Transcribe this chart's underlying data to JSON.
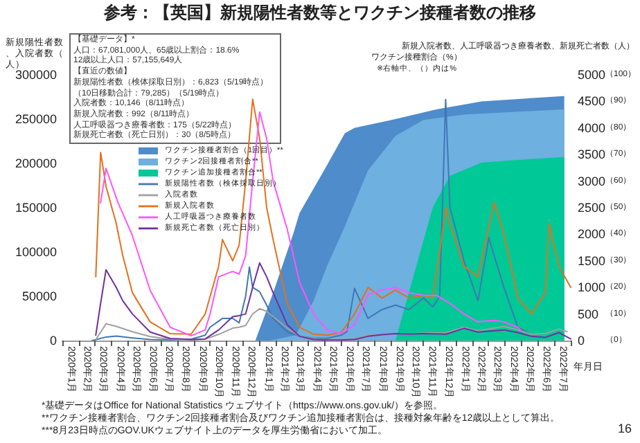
{
  "chart_data": {
    "type": "line",
    "title": "参考：【英国】新規陽性者数等とワクチン接種者数の推移",
    "xlabel": "年月日",
    "ylabel": "新規陽性者数、入院者数（人）",
    "y2label": "新規入院者数、人工呼吸器つき療養者数、新規死亡者数（人）",
    "y3label": "ワクチン接種割合（%）",
    "annotations": [
      "【基礎データ】*",
      "人口：67,081,000人、65歳以上割合：18.6%",
      "12歳以上人口：57,155,649人",
      "【直近の数値】",
      "新規陽性者数（検体採取日別）：6,823（5/19時点）",
      "（10日移動合計：79,285）（5/19時点）",
      "入院者数：10,146（8/11時点）",
      "新規入院者数：992（8/11時点）",
      "人工呼吸器つき療養者数：175（5/22時点）",
      "新規死亡者数（死亡日別）：30（8/5時点）",
      "※右軸中、（）内は%",
      "*基礎データはOffice for National Statistics ウェブサイト（https://www.ons.gov.uk/）を参照。",
      "**ワクチン接種者割合、ワクチン2回接種者割合及びワクチン追加接種者割合は、接種対象年齢を12歳以上として算出。",
      "***8月23日時点のGOV.UKウェブサイト上のデータを厚生労働省において加工。",
      "16"
    ],
    "legend": "top left",
    "grid": false,
    "marker": "none",
    "xlim": [
      "2020-01-01",
      "2022-08-01"
    ],
    "xticks": [
      {
        "value": "2020-01-01",
        "label": null
      },
      {
        "value": "2020-02-01",
        "label": null
      },
      {
        "value": "2020-03-01",
        "label": null
      },
      {
        "value": "2020-04-01",
        "label": null
      },
      {
        "value": "2020-05-01",
        "label": null
      },
      {
        "value": "2020-06-01",
        "label": null
      },
      {
        "value": "2020-07-01",
        "label": null
      },
      {
        "value": "2020-08-01",
        "label": null
      },
      {
        "value": "2020-09-01",
        "label": null
      },
      {
        "value": "2020-10-01",
        "label": null
      },
      {
        "value": "2020-11-01",
        "label": null
      },
      {
        "value": "2020-12-01",
        "label": null
      },
      {
        "value": "2021-01-01",
        "label": null
      },
      {
        "value": "2021-02-01",
        "label": null
      },
      {
        "value": "2021-03-01",
        "label": null
      },
      {
        "value": "2021-04-01",
        "label": null
      },
      {
        "value": "2021-05-01",
        "label": null
      },
      {
        "value": "2021-06-01",
        "label": null
      },
      {
        "value": "2021-07-01",
        "label": null
      },
      {
        "value": "2021-08-01",
        "label": null
      },
      {
        "value": "2021-09-01",
        "label": null
      },
      {
        "value": "2021-10-01",
        "label": null
      },
      {
        "value": "2021-11-01",
        "label": null
      },
      {
        "value": "2021-12-01",
        "label": null
      },
      {
        "value": "2022-01-01",
        "label": null
      },
      {
        "value": "2022-02-01",
        "label": null
      },
      {
        "value": "2022-03-01",
        "label": null
      },
      {
        "value": "2022-04-01",
        "label": null
      },
      {
        "value": "2022-05-01",
        "label": null
      },
      {
        "value": "2022-06-01",
        "label": null
      },
      {
        "value": "2022-07-01",
        "label": null
      },
      {
        "value": "2022-08-01",
        "label": null
      },
      {
        "value": "2020-01-16",
        "label": "2020年1月"
      },
      {
        "value": "2020-02-15",
        "label": "2020年2月"
      },
      {
        "value": "2020-03-16",
        "label": "2020年3月"
      },
      {
        "value": "2020-04-16",
        "label": "2020年4月"
      },
      {
        "value": "2020-05-16",
        "label": "2020年5月"
      },
      {
        "value": "2020-06-16",
        "label": "2020年6月"
      },
      {
        "value": "2020-07-16",
        "label": "2020年7月"
      },
      {
        "value": "2020-08-16",
        "label": "2020年8月"
      },
      {
        "value": "2020-09-16",
        "label": "2020年9月"
      },
      {
        "value": "2020-10-16",
        "label": "2020年10月"
      },
      {
        "value": "2020-11-16",
        "label": "2020年11月"
      },
      {
        "value": "2020-12-16",
        "label": "2020年12月"
      },
      {
        "value": "2021-01-16",
        "label": "2021年1月"
      },
      {
        "value": "2021-02-15",
        "label": "2021年2月"
      },
      {
        "value": "2021-03-16",
        "label": "2021年3月"
      },
      {
        "value": "2021-04-16",
        "label": "2021年4月"
      },
      {
        "value": "2021-05-16",
        "label": "2021年5月"
      },
      {
        "value": "2021-06-16",
        "label": "2021年6月"
      },
      {
        "value": "2021-07-16",
        "label": "2021年7月"
      },
      {
        "value": "2021-08-16",
        "label": "2021年8月"
      },
      {
        "value": "2021-09-16",
        "label": "2021年9月"
      },
      {
        "value": "2021-10-16",
        "label": "2021年10月"
      },
      {
        "value": "2021-11-16",
        "label": "2021年11月"
      },
      {
        "value": "2021-12-16",
        "label": "2021年12月"
      },
      {
        "value": "2022-01-16",
        "label": "2022年1月"
      },
      {
        "value": "2022-02-15",
        "label": "2022年2月"
      },
      {
        "value": "2022-03-16",
        "label": "2022年3月"
      },
      {
        "value": "2022-04-16",
        "label": "2022年4月"
      },
      {
        "value": "2022-05-16",
        "label": "2022年5月"
      },
      {
        "value": "2022-06-16",
        "label": "2022年6月"
      },
      {
        "value": "2022-07-16",
        "label": "2022年7月"
      }
    ],
    "ylim": [
      0,
      300000
    ],
    "yticks": [
      0,
      50000,
      100000,
      150000,
      200000,
      250000,
      300000
    ],
    "y2lim": [
      0,
      5000
    ],
    "y2ticks": [
      0,
      500,
      1000,
      1500,
      2000,
      2500,
      3000,
      3500,
      4000,
      4500,
      5000
    ],
    "y3lim": [
      0,
      100
    ],
    "y3ticks": [
      {
        "value": 0,
        "label": "（0）"
      },
      {
        "value": 10,
        "label": "（10）"
      },
      {
        "value": 20,
        "label": "（20）"
      },
      {
        "value": 30,
        "label": "（30）"
      },
      {
        "value": 40,
        "label": "（40）"
      },
      {
        "value": 50,
        "label": "（50）"
      },
      {
        "value": 60,
        "label": "（60）"
      },
      {
        "value": 70,
        "label": "（70）"
      },
      {
        "value": 80,
        "label": "（80）"
      },
      {
        "value": 90,
        "label": "（90）"
      },
      {
        "value": 100,
        "label": "（100）"
      }
    ],
    "series": [
      {
        "name": "ワクチン接種者割合（1回目）**",
        "type": "area",
        "axis": "y3",
        "color": "#4f8ccb",
        "x": [
          "2020-12-24",
          "2021-01-26",
          "2021-03-04",
          "2021-03-16",
          "2021-05-06",
          "2021-06-08",
          "2021-06-26",
          "2021-09-03",
          "2021-11-25",
          "2022-02-17",
          "2022-07-20"
        ],
        "values": [
          0,
          18,
          40,
          48,
          66,
          78,
          80,
          83,
          87,
          90,
          92
        ]
      },
      {
        "name": "ワクチン2回接種者割合**",
        "type": "area",
        "axis": "y3",
        "color": "#6eb0e0",
        "x": [
          "2021-01-20",
          "2021-03-09",
          "2021-04-11",
          "2021-05-06",
          "2021-06-08",
          "2021-07-21",
          "2021-09-10",
          "2021-11-01",
          "2022-01-15",
          "2022-07-20"
        ],
        "values": [
          0,
          2,
          15,
          28,
          43,
          64,
          77,
          83,
          85,
          87
        ]
      },
      {
        "name": "ワクチン追加接種者割合**",
        "type": "area",
        "axis": "y3",
        "color": "#00c896",
        "x": [
          "2021-09-10",
          "2021-10-13",
          "2021-11-18",
          "2021-12-20",
          "2022-02-17",
          "2022-04-25",
          "2022-07-20"
        ],
        "values": [
          0,
          24,
          50,
          62,
          67,
          68,
          69
        ]
      },
      {
        "name": "新規陽性者数（検体採取日別）",
        "axis": "y",
        "color": "#3f78b5",
        "x": [
          "2020-02-25",
          "2020-03-03",
          "2020-03-22",
          "2020-04-10",
          "2020-05-10",
          "2020-06-12",
          "2020-07-19",
          "2020-08-27",
          "2020-09-22",
          "2020-10-01",
          "2020-10-17",
          "2020-10-24",
          "2020-11-12",
          "2020-11-24",
          "2020-12-06",
          "2020-12-13",
          "2020-12-19",
          "2021-01-01",
          "2021-01-14",
          "2021-01-26",
          "2021-02-21",
          "2021-03-16",
          "2021-04-11",
          "2021-05-06",
          "2021-06-01",
          "2021-06-12",
          "2021-06-26",
          "2021-07-21",
          "2021-08-16",
          "2021-09-10",
          "2021-10-05",
          "2021-11-01",
          "2021-11-18",
          "2021-12-01",
          "2021-12-12",
          "2021-12-20",
          "2022-01-15",
          "2022-02-10",
          "2022-03-02",
          "2022-03-30",
          "2022-04-25",
          "2022-05-19"
        ],
        "values": [
          0,
          1000,
          4000,
          5000,
          3000,
          1200,
          700,
          1500,
          6000,
          15000,
          22000,
          25000,
          25000,
          20000,
          50000,
          83000,
          60000,
          55000,
          40000,
          25000,
          10000,
          5000,
          2500,
          2500,
          6000,
          10000,
          59000,
          25000,
          35000,
          40000,
          35000,
          48000,
          38000,
          50000,
          272000,
          150000,
          90000,
          45000,
          116000,
          60000,
          15000,
          7000
        ]
      },
      {
        "name": "入院者数",
        "axis": "y",
        "color": "#a0a0a0",
        "x": [
          "2020-03-03",
          "2020-03-22",
          "2020-04-10",
          "2020-05-10",
          "2020-06-12",
          "2020-07-19",
          "2020-08-27",
          "2020-09-22",
          "2020-10-17",
          "2020-11-12",
          "2020-11-24",
          "2020-12-06",
          "2020-12-19",
          "2021-01-01",
          "2021-01-14",
          "2021-02-21",
          "2021-03-16",
          "2021-04-11",
          "2021-05-06",
          "2021-06-01",
          "2021-06-26",
          "2021-07-21",
          "2021-08-16",
          "2021-09-10",
          "2021-10-05",
          "2021-11-01",
          "2021-12-13",
          "2022-01-15",
          "2022-02-10",
          "2022-03-30",
          "2022-04-25",
          "2022-05-20",
          "2022-06-15",
          "2022-07-10",
          "2022-07-25"
        ],
        "values": [
          1000,
          19000,
          16000,
          10000,
          4500,
          1500,
          700,
          1500,
          7000,
          14000,
          15000,
          17000,
          30000,
          36000,
          33000,
          14000,
          5000,
          2000,
          1000,
          1000,
          2000,
          6000,
          7000,
          8000,
          7000,
          8500,
          9000,
          15000,
          11000,
          16000,
          12000,
          7000,
          8000,
          13000,
          10000
        ]
      },
      {
        "name": "新規入院者数",
        "axis": "y2",
        "color": "#e2711d",
        "x": [
          "2020-03-03",
          "2020-03-12",
          "2020-03-22",
          "2020-04-10",
          "2020-04-22",
          "2020-05-10",
          "2020-06-12",
          "2020-07-19",
          "2020-08-27",
          "2020-09-22",
          "2020-10-17",
          "2020-10-24",
          "2020-11-12",
          "2020-11-24",
          "2020-12-06",
          "2020-12-19",
          "2021-01-01",
          "2021-01-14",
          "2021-01-26",
          "2021-02-21",
          "2021-03-16",
          "2021-04-11",
          "2021-05-06",
          "2021-06-01",
          "2021-06-26",
          "2021-07-21",
          "2021-08-16",
          "2021-09-10",
          "2021-10-05",
          "2021-11-01",
          "2021-11-18",
          "2021-12-13",
          "2021-12-20",
          "2022-01-15",
          "2022-02-10",
          "2022-03-12",
          "2022-03-30",
          "2022-04-25",
          "2022-05-20",
          "2022-06-15",
          "2022-06-22",
          "2022-07-10",
          "2022-08-01"
        ],
        "values": [
          1200,
          3540,
          2900,
          2200,
          1600,
          900,
          350,
          130,
          120,
          500,
          1400,
          1900,
          1500,
          1800,
          3000,
          4540,
          3800,
          2500,
          1900,
          700,
          250,
          120,
          100,
          150,
          500,
          1000,
          800,
          950,
          800,
          850,
          800,
          2500,
          2200,
          1400,
          1200,
          2600,
          2000,
          800,
          500,
          900,
          2200,
          1400,
          1000
        ]
      },
      {
        "name": "人工呼吸器つき療養者数",
        "axis": "y2",
        "color": "#ff55ff",
        "x": [
          "2020-03-12",
          "2020-03-22",
          "2020-04-13",
          "2020-05-09",
          "2020-06-12",
          "2020-07-19",
          "2020-08-27",
          "2020-09-22",
          "2020-10-01",
          "2020-10-17",
          "2020-11-12",
          "2020-11-24",
          "2020-12-06",
          "2020-12-19",
          "2021-01-01",
          "2021-01-14",
          "2021-01-26",
          "2021-02-21",
          "2021-03-16",
          "2021-04-11",
          "2021-05-06",
          "2021-06-01",
          "2021-06-26",
          "2021-07-21",
          "2021-08-16",
          "2021-09-10",
          "2021-10-05",
          "2021-11-01",
          "2021-11-25",
          "2021-12-20",
          "2022-01-15",
          "2022-02-10",
          "2022-03-12",
          "2022-03-30",
          "2022-04-25",
          "2022-05-01"
        ],
        "values": [
          2590,
          3240,
          2600,
          2000,
          940,
          250,
          90,
          200,
          500,
          1200,
          1300,
          1250,
          1600,
          3000,
          4300,
          3800,
          3000,
          2100,
          1100,
          500,
          200,
          130,
          300,
          860,
          950,
          1000,
          900,
          850,
          850,
          700,
          500,
          350,
          380,
          350,
          250,
          180
        ]
      },
      {
        "name": "新規死亡者数（死亡日別）",
        "axis": "y2",
        "color": "#7030a0",
        "x": [
          "2020-03-03",
          "2020-03-12",
          "2020-03-22",
          "2020-04-10",
          "2020-04-22",
          "2020-05-10",
          "2020-06-12",
          "2020-07-19",
          "2020-08-27",
          "2020-09-22",
          "2020-10-17",
          "2020-11-12",
          "2020-11-24",
          "2020-12-06",
          "2020-12-19",
          "2021-01-01",
          "2021-01-14",
          "2021-01-26",
          "2021-02-21",
          "2021-03-16",
          "2021-04-11",
          "2021-05-06",
          "2021-06-01",
          "2021-06-26",
          "2021-07-21",
          "2021-08-16",
          "2021-09-10",
          "2021-10-05",
          "2021-11-01",
          "2021-12-13",
          "2022-01-15",
          "2022-02-10",
          "2022-03-30",
          "2022-04-25",
          "2022-05-20",
          "2022-06-15",
          "2022-07-10",
          "2022-08-01"
        ],
        "values": [
          100,
          700,
          1330,
          1000,
          750,
          500,
          160,
          40,
          20,
          30,
          200,
          450,
          470,
          500,
          1000,
          1460,
          1200,
          900,
          300,
          80,
          20,
          10,
          10,
          20,
          80,
          110,
          130,
          120,
          130,
          120,
          230,
          160,
          200,
          150,
          80,
          60,
          150,
          30
        ]
      }
    ]
  }
}
